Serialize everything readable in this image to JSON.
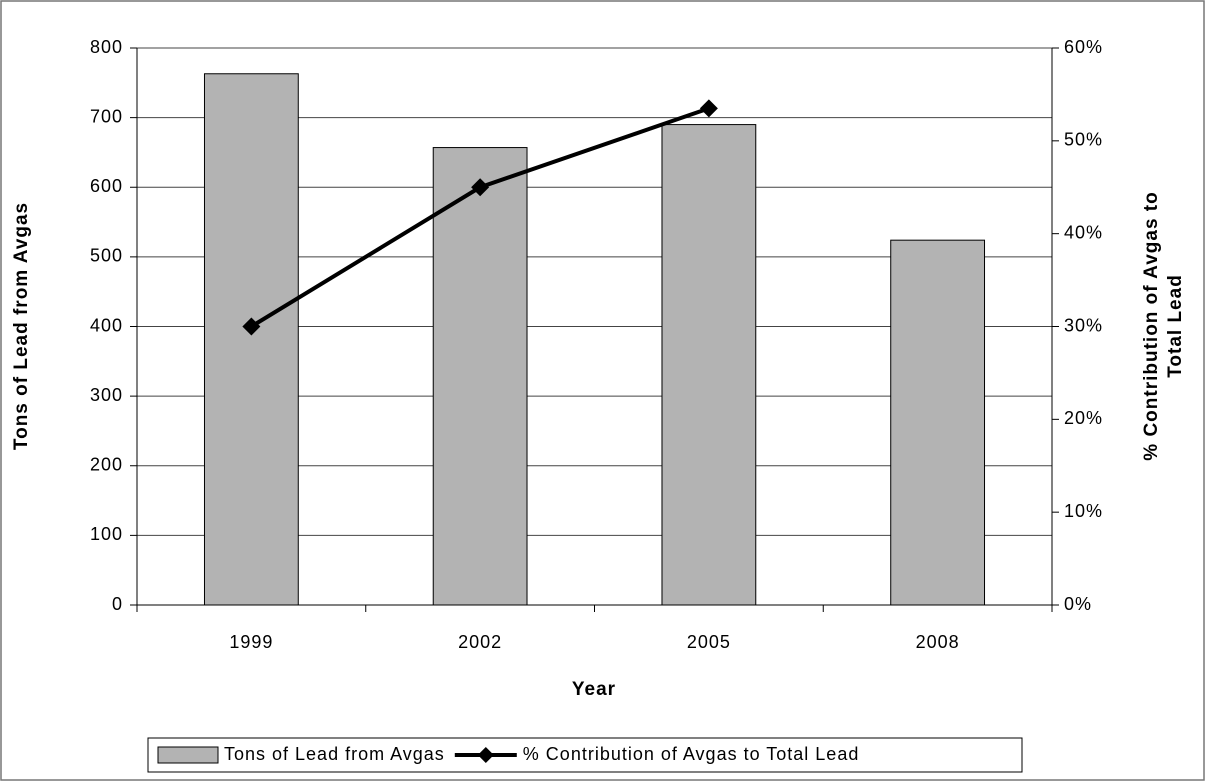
{
  "chart_data": {
    "type": "bar+line",
    "xlabel": "Year",
    "ylabel": "Tons of Lead from Avgas",
    "y2label": [
      "% Contribution of Avgas to",
      "Total Lead"
    ],
    "categories": [
      "1999",
      "2002",
      "2005",
      "2008"
    ],
    "series": [
      {
        "name": "Tons of Lead from Avgas",
        "type": "bar",
        "color": "#b3b3b3",
        "values": [
          763,
          657,
          690,
          524
        ]
      },
      {
        "name": "% Contribution of Avgas to Total Lead",
        "type": "line",
        "axis": "y2",
        "color": "#000000",
        "values": [
          30,
          45,
          53.5,
          null
        ]
      }
    ],
    "ylim": [
      0,
      800
    ],
    "yticks": [
      0,
      100,
      200,
      300,
      400,
      500,
      600,
      700,
      800
    ],
    "y2lim": [
      0,
      60
    ],
    "y2ticks": [
      {
        "value": 0,
        "label": "0%"
      },
      {
        "value": 10,
        "label": "10%"
      },
      {
        "value": 20,
        "label": "20%"
      },
      {
        "value": 30,
        "label": "30%"
      },
      {
        "value": 40,
        "label": "40%"
      },
      {
        "value": 50,
        "label": "50%"
      },
      {
        "value": 60,
        "label": "60%"
      }
    ],
    "grid": true,
    "legend": "bottom"
  }
}
